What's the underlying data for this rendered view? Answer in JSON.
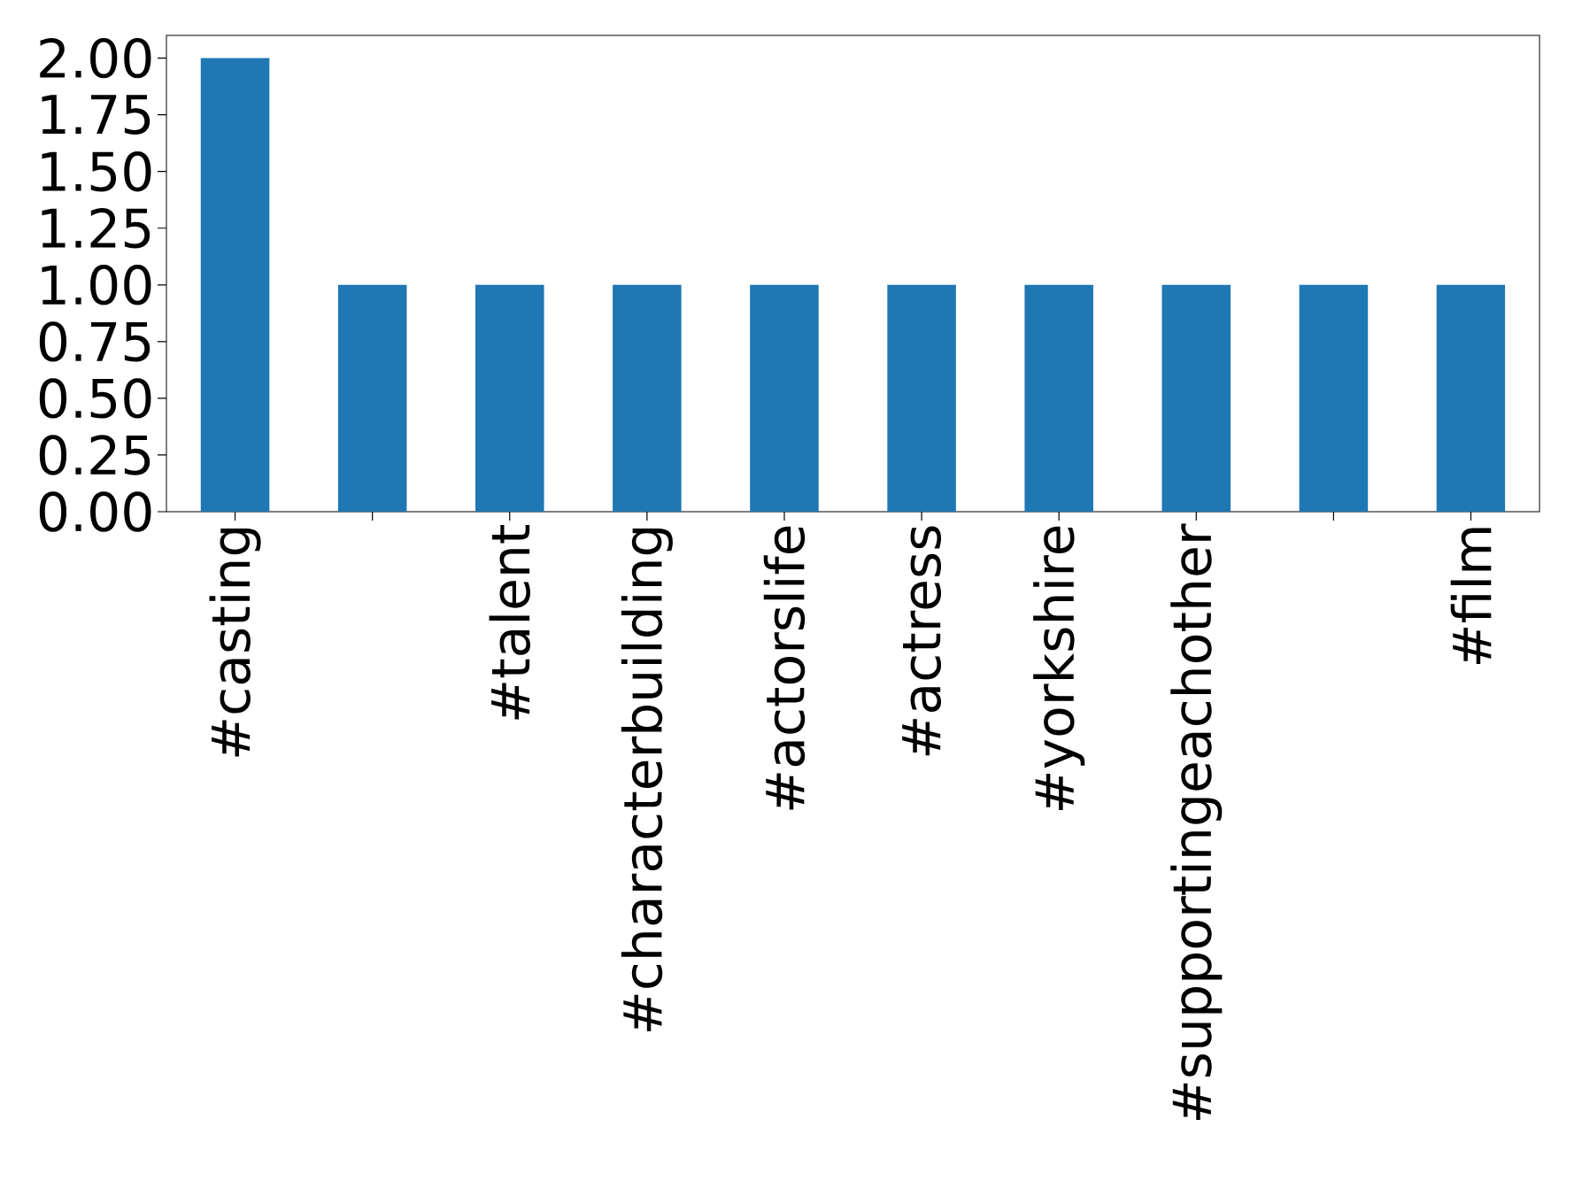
{
  "chart_data": {
    "type": "bar",
    "categories": [
      "#casting",
      null,
      "#talent",
      "#characterbuilding",
      "#actorslife",
      "#actress",
      "#yorkshire",
      "#supportingeachother",
      null,
      "#film"
    ],
    "values": [
      2,
      1,
      1,
      1,
      1,
      1,
      1,
      1,
      1,
      1
    ],
    "color": "#1f77b4",
    "ylim": [
      0,
      2.1
    ],
    "yticks": [
      {
        "value": 0,
        "label": "0.00"
      },
      {
        "value": 0.25,
        "label": "0.25"
      },
      {
        "value": 0.5,
        "label": "0.50"
      },
      {
        "value": 0.75,
        "label": "0.75"
      },
      {
        "value": 1,
        "label": "1.00"
      },
      {
        "value": 1.25,
        "label": "1.25"
      },
      {
        "value": 1.5,
        "label": "1.50"
      },
      {
        "value": 1.75,
        "label": "1.75"
      },
      {
        "value": 2,
        "label": "2.00"
      }
    ],
    "grid": false
  }
}
